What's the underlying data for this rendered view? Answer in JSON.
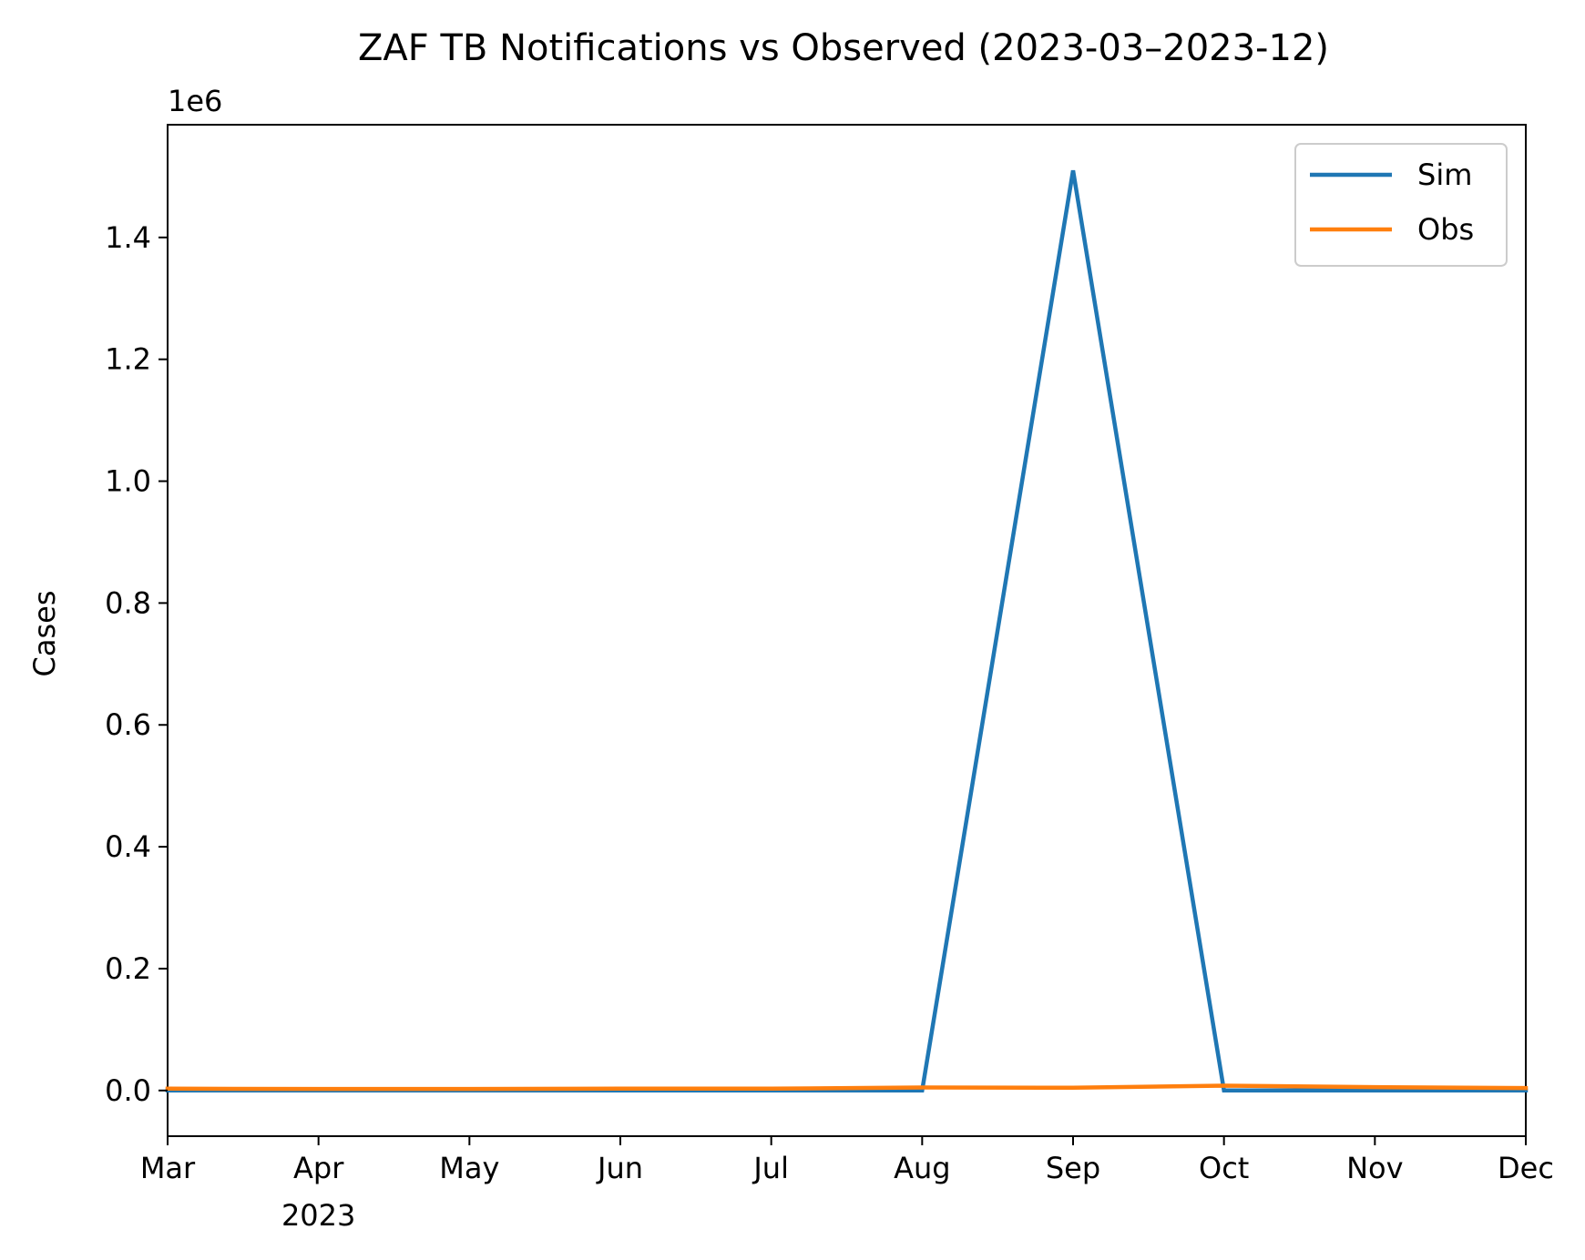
{
  "chart_data": {
    "type": "line",
    "title": "ZAF TB Notifications vs Observed  (2023-03–2023-12)",
    "xlabel": "",
    "ylabel": "Cases",
    "y_offset_label": "1e6",
    "x": [
      "2023-03",
      "2023-04",
      "2023-05",
      "2023-06",
      "2023-07",
      "2023-08",
      "2023-09",
      "2023-10",
      "2023-11",
      "2023-12"
    ],
    "x_tick_labels": [
      "Mar",
      "Apr",
      "May",
      "Jun",
      "Jul",
      "Aug",
      "Sep",
      "Oct",
      "Nov",
      "Dec"
    ],
    "x_year_label": "2023",
    "y_ticks": [
      "0.0",
      "0.2",
      "0.4",
      "0.6",
      "0.8",
      "1.0",
      "1.2",
      "1.4"
    ],
    "ylim": [
      -75000,
      1585000
    ],
    "grid": false,
    "legend_position": "upper right",
    "series": [
      {
        "name": "Sim",
        "color": "#1f77b4",
        "values": [
          0,
          0,
          0,
          0,
          0,
          0,
          1510000,
          0,
          0,
          0
        ]
      },
      {
        "name": "Obs",
        "color": "#ff7f0e",
        "values": [
          3000,
          2500,
          2500,
          3000,
          3000,
          5000,
          4500,
          8000,
          5500,
          4000
        ]
      }
    ]
  }
}
